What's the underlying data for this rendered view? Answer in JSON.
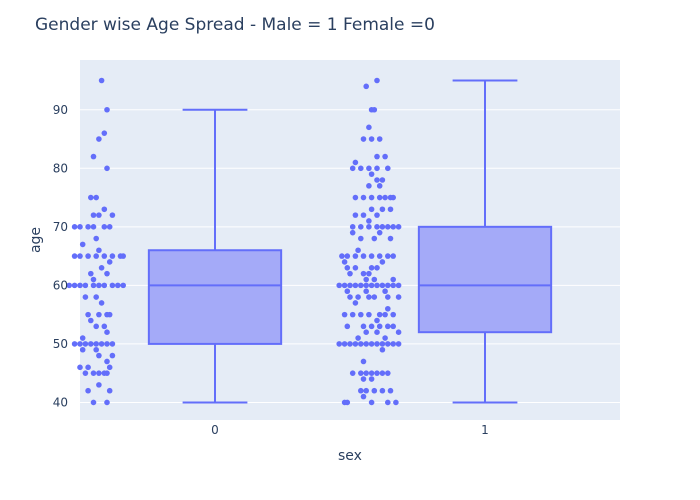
{
  "chart_data": {
    "type": "box",
    "title": "Gender wise Age Spread - Male = 1 Female =0",
    "xlabel": "sex",
    "ylabel": "age",
    "categories": [
      "0",
      "1"
    ],
    "ylim": [
      37,
      98.5
    ],
    "yticks": [
      40,
      50,
      60,
      70,
      80,
      90
    ],
    "grid": true,
    "plot_background": "#e5ecf6",
    "colors": {
      "box_line": "#636efa",
      "box_fill": "#a4aaf8",
      "grid": "#ffffff"
    },
    "boxes": [
      {
        "category": "0",
        "min": 40,
        "q1": 50,
        "median": 60,
        "q3": 66,
        "max": 90,
        "points": [
          {
            "x": -0.42,
            "y": 95
          },
          {
            "x": -0.4,
            "y": 90
          },
          {
            "x": -0.41,
            "y": 86
          },
          {
            "x": -0.43,
            "y": 85
          },
          {
            "x": -0.45,
            "y": 82
          },
          {
            "x": -0.4,
            "y": 80
          },
          {
            "x": -0.46,
            "y": 75
          },
          {
            "x": -0.44,
            "y": 75
          },
          {
            "x": -0.41,
            "y": 73
          },
          {
            "x": -0.45,
            "y": 72
          },
          {
            "x": -0.43,
            "y": 72
          },
          {
            "x": -0.38,
            "y": 72
          },
          {
            "x": -0.52,
            "y": 70
          },
          {
            "x": -0.5,
            "y": 70
          },
          {
            "x": -0.47,
            "y": 70
          },
          {
            "x": -0.45,
            "y": 70
          },
          {
            "x": -0.41,
            "y": 70
          },
          {
            "x": -0.39,
            "y": 70
          },
          {
            "x": -0.44,
            "y": 68
          },
          {
            "x": -0.49,
            "y": 67
          },
          {
            "x": -0.43,
            "y": 66
          },
          {
            "x": -0.52,
            "y": 65
          },
          {
            "x": -0.5,
            "y": 65
          },
          {
            "x": -0.47,
            "y": 65
          },
          {
            "x": -0.44,
            "y": 65
          },
          {
            "x": -0.41,
            "y": 65
          },
          {
            "x": -0.38,
            "y": 65
          },
          {
            "x": -0.35,
            "y": 65
          },
          {
            "x": -0.34,
            "y": 65
          },
          {
            "x": -0.39,
            "y": 64
          },
          {
            "x": -0.42,
            "y": 63
          },
          {
            "x": -0.46,
            "y": 62
          },
          {
            "x": -0.4,
            "y": 62
          },
          {
            "x": -0.45,
            "y": 61
          },
          {
            "x": -0.54,
            "y": 60
          },
          {
            "x": -0.52,
            "y": 60
          },
          {
            "x": -0.5,
            "y": 60
          },
          {
            "x": -0.48,
            "y": 60
          },
          {
            "x": -0.45,
            "y": 60
          },
          {
            "x": -0.43,
            "y": 60
          },
          {
            "x": -0.41,
            "y": 60
          },
          {
            "x": -0.38,
            "y": 60
          },
          {
            "x": -0.36,
            "y": 60
          },
          {
            "x": -0.34,
            "y": 60
          },
          {
            "x": -0.48,
            "y": 58
          },
          {
            "x": -0.44,
            "y": 58
          },
          {
            "x": -0.42,
            "y": 57
          },
          {
            "x": -0.47,
            "y": 55
          },
          {
            "x": -0.43,
            "y": 55
          },
          {
            "x": -0.4,
            "y": 55
          },
          {
            "x": -0.39,
            "y": 55
          },
          {
            "x": -0.46,
            "y": 54
          },
          {
            "x": -0.44,
            "y": 53
          },
          {
            "x": -0.41,
            "y": 53
          },
          {
            "x": -0.4,
            "y": 52
          },
          {
            "x": -0.49,
            "y": 51
          },
          {
            "x": -0.52,
            "y": 50
          },
          {
            "x": -0.5,
            "y": 50
          },
          {
            "x": -0.48,
            "y": 50
          },
          {
            "x": -0.46,
            "y": 50
          },
          {
            "x": -0.44,
            "y": 50
          },
          {
            "x": -0.42,
            "y": 50
          },
          {
            "x": -0.4,
            "y": 50
          },
          {
            "x": -0.38,
            "y": 50
          },
          {
            "x": -0.49,
            "y": 49
          },
          {
            "x": -0.44,
            "y": 49
          },
          {
            "x": -0.38,
            "y": 48
          },
          {
            "x": -0.43,
            "y": 48
          },
          {
            "x": -0.4,
            "y": 47
          },
          {
            "x": -0.5,
            "y": 46
          },
          {
            "x": -0.47,
            "y": 46
          },
          {
            "x": -0.39,
            "y": 46
          },
          {
            "x": -0.48,
            "y": 45
          },
          {
            "x": -0.45,
            "y": 45
          },
          {
            "x": -0.43,
            "y": 45
          },
          {
            "x": -0.41,
            "y": 45
          },
          {
            "x": -0.4,
            "y": 45
          },
          {
            "x": -0.43,
            "y": 43
          },
          {
            "x": -0.47,
            "y": 42
          },
          {
            "x": -0.39,
            "y": 42
          },
          {
            "x": -0.45,
            "y": 40
          },
          {
            "x": -0.4,
            "y": 40
          }
        ]
      },
      {
        "category": "1",
        "min": 40,
        "q1": 52,
        "median": 60,
        "q3": 70,
        "max": 95,
        "points": [
          {
            "x": 0.6,
            "y": 95
          },
          {
            "x": 0.56,
            "y": 94
          },
          {
            "x": 0.58,
            "y": 90
          },
          {
            "x": 0.59,
            "y": 90
          },
          {
            "x": 0.57,
            "y": 87
          },
          {
            "x": 0.55,
            "y": 85
          },
          {
            "x": 0.58,
            "y": 85
          },
          {
            "x": 0.61,
            "y": 85
          },
          {
            "x": 0.6,
            "y": 82
          },
          {
            "x": 0.63,
            "y": 82
          },
          {
            "x": 0.52,
            "y": 81
          },
          {
            "x": 0.51,
            "y": 80
          },
          {
            "x": 0.54,
            "y": 80
          },
          {
            "x": 0.57,
            "y": 80
          },
          {
            "x": 0.6,
            "y": 80
          },
          {
            "x": 0.64,
            "y": 80
          },
          {
            "x": 0.58,
            "y": 79
          },
          {
            "x": 0.6,
            "y": 78
          },
          {
            "x": 0.62,
            "y": 78
          },
          {
            "x": 0.57,
            "y": 77
          },
          {
            "x": 0.61,
            "y": 77
          },
          {
            "x": 0.52,
            "y": 75
          },
          {
            "x": 0.55,
            "y": 75
          },
          {
            "x": 0.58,
            "y": 75
          },
          {
            "x": 0.61,
            "y": 75
          },
          {
            "x": 0.63,
            "y": 75
          },
          {
            "x": 0.65,
            "y": 75
          },
          {
            "x": 0.66,
            "y": 75
          },
          {
            "x": 0.62,
            "y": 73
          },
          {
            "x": 0.65,
            "y": 73
          },
          {
            "x": 0.58,
            "y": 73
          },
          {
            "x": 0.52,
            "y": 72
          },
          {
            "x": 0.55,
            "y": 72
          },
          {
            "x": 0.6,
            "y": 72
          },
          {
            "x": 0.57,
            "y": 71
          },
          {
            "x": 0.51,
            "y": 70
          },
          {
            "x": 0.54,
            "y": 70
          },
          {
            "x": 0.57,
            "y": 70
          },
          {
            "x": 0.6,
            "y": 70
          },
          {
            "x": 0.62,
            "y": 70
          },
          {
            "x": 0.64,
            "y": 70
          },
          {
            "x": 0.66,
            "y": 70
          },
          {
            "x": 0.68,
            "y": 70
          },
          {
            "x": 0.51,
            "y": 69
          },
          {
            "x": 0.61,
            "y": 69
          },
          {
            "x": 0.54,
            "y": 68
          },
          {
            "x": 0.59,
            "y": 68
          },
          {
            "x": 0.65,
            "y": 68
          },
          {
            "x": 0.53,
            "y": 66
          },
          {
            "x": 0.47,
            "y": 65
          },
          {
            "x": 0.49,
            "y": 65
          },
          {
            "x": 0.52,
            "y": 65
          },
          {
            "x": 0.55,
            "y": 65
          },
          {
            "x": 0.58,
            "y": 65
          },
          {
            "x": 0.61,
            "y": 65
          },
          {
            "x": 0.64,
            "y": 65
          },
          {
            "x": 0.66,
            "y": 65
          },
          {
            "x": 0.48,
            "y": 64
          },
          {
            "x": 0.62,
            "y": 64
          },
          {
            "x": 0.49,
            "y": 63
          },
          {
            "x": 0.52,
            "y": 63
          },
          {
            "x": 0.58,
            "y": 63
          },
          {
            "x": 0.6,
            "y": 63
          },
          {
            "x": 0.5,
            "y": 62
          },
          {
            "x": 0.55,
            "y": 62
          },
          {
            "x": 0.57,
            "y": 62
          },
          {
            "x": 0.56,
            "y": 61
          },
          {
            "x": 0.59,
            "y": 61
          },
          {
            "x": 0.66,
            "y": 61
          },
          {
            "x": 0.46,
            "y": 60
          },
          {
            "x": 0.48,
            "y": 60
          },
          {
            "x": 0.5,
            "y": 60
          },
          {
            "x": 0.52,
            "y": 60
          },
          {
            "x": 0.54,
            "y": 60
          },
          {
            "x": 0.56,
            "y": 60
          },
          {
            "x": 0.58,
            "y": 60
          },
          {
            "x": 0.6,
            "y": 60
          },
          {
            "x": 0.62,
            "y": 60
          },
          {
            "x": 0.64,
            "y": 60
          },
          {
            "x": 0.66,
            "y": 60
          },
          {
            "x": 0.68,
            "y": 60
          },
          {
            "x": 0.49,
            "y": 59
          },
          {
            "x": 0.56,
            "y": 59
          },
          {
            "x": 0.63,
            "y": 59
          },
          {
            "x": 0.5,
            "y": 58
          },
          {
            "x": 0.53,
            "y": 58
          },
          {
            "x": 0.57,
            "y": 58
          },
          {
            "x": 0.59,
            "y": 58
          },
          {
            "x": 0.64,
            "y": 58
          },
          {
            "x": 0.68,
            "y": 58
          },
          {
            "x": 0.52,
            "y": 57
          },
          {
            "x": 0.64,
            "y": 56
          },
          {
            "x": 0.48,
            "y": 55
          },
          {
            "x": 0.51,
            "y": 55
          },
          {
            "x": 0.54,
            "y": 55
          },
          {
            "x": 0.57,
            "y": 55
          },
          {
            "x": 0.61,
            "y": 55
          },
          {
            "x": 0.63,
            "y": 55
          },
          {
            "x": 0.66,
            "y": 55
          },
          {
            "x": 0.6,
            "y": 54
          },
          {
            "x": 0.49,
            "y": 53
          },
          {
            "x": 0.55,
            "y": 53
          },
          {
            "x": 0.58,
            "y": 53
          },
          {
            "x": 0.61,
            "y": 53
          },
          {
            "x": 0.64,
            "y": 53
          },
          {
            "x": 0.66,
            "y": 53
          },
          {
            "x": 0.56,
            "y": 52
          },
          {
            "x": 0.6,
            "y": 52
          },
          {
            "x": 0.68,
            "y": 52
          },
          {
            "x": 0.53,
            "y": 51
          },
          {
            "x": 0.63,
            "y": 51
          },
          {
            "x": 0.46,
            "y": 50
          },
          {
            "x": 0.48,
            "y": 50
          },
          {
            "x": 0.5,
            "y": 50
          },
          {
            "x": 0.52,
            "y": 50
          },
          {
            "x": 0.54,
            "y": 50
          },
          {
            "x": 0.56,
            "y": 50
          },
          {
            "x": 0.58,
            "y": 50
          },
          {
            "x": 0.6,
            "y": 50
          },
          {
            "x": 0.62,
            "y": 50
          },
          {
            "x": 0.64,
            "y": 50
          },
          {
            "x": 0.66,
            "y": 50
          },
          {
            "x": 0.68,
            "y": 50
          },
          {
            "x": 0.62,
            "y": 49
          },
          {
            "x": 0.55,
            "y": 47
          },
          {
            "x": 0.51,
            "y": 45
          },
          {
            "x": 0.54,
            "y": 45
          },
          {
            "x": 0.56,
            "y": 45
          },
          {
            "x": 0.58,
            "y": 45
          },
          {
            "x": 0.6,
            "y": 45
          },
          {
            "x": 0.62,
            "y": 45
          },
          {
            "x": 0.64,
            "y": 45
          },
          {
            "x": 0.55,
            "y": 44
          },
          {
            "x": 0.58,
            "y": 44
          },
          {
            "x": 0.54,
            "y": 42
          },
          {
            "x": 0.56,
            "y": 42
          },
          {
            "x": 0.59,
            "y": 42
          },
          {
            "x": 0.62,
            "y": 42
          },
          {
            "x": 0.65,
            "y": 42
          },
          {
            "x": 0.55,
            "y": 41
          },
          {
            "x": 0.48,
            "y": 40
          },
          {
            "x": 0.49,
            "y": 40
          },
          {
            "x": 0.58,
            "y": 40
          },
          {
            "x": 0.64,
            "y": 40
          },
          {
            "x": 0.67,
            "y": 40
          }
        ]
      }
    ]
  }
}
